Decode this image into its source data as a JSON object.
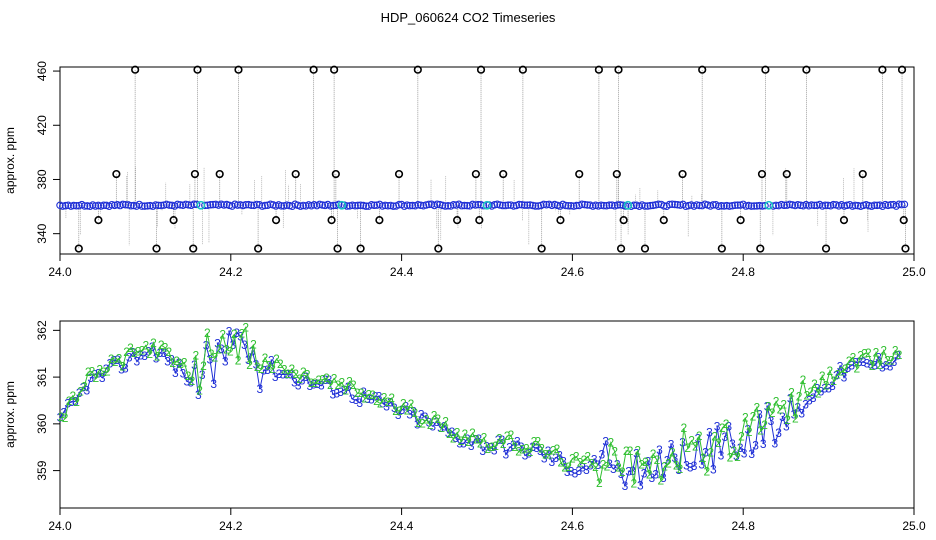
{
  "title": "HDP_060624  CO2 Timeseries",
  "colors": {
    "frame": "#000000",
    "spike_line": "#8c8c8c",
    "outlier": "#000000",
    "main_series": "#1f2fd6",
    "marker_cyan": "#19c3c3",
    "green": "#2fbf2f",
    "blue": "#1f2fd6"
  },
  "chart_data": [
    {
      "type": "scatter",
      "ylabel": "approx. ppm",
      "xlim": [
        24.0,
        25.0
      ],
      "ylim": [
        325,
        463
      ],
      "x_ticks": [
        24.0,
        24.2,
        24.4,
        24.6,
        24.8,
        25.0
      ],
      "x_tick_labels": [
        "24.0",
        "24.2",
        "24.4",
        "24.6",
        "24.8",
        "25.0"
      ],
      "y_ticks": [
        340,
        380,
        420,
        460
      ],
      "y_tick_labels": [
        "340",
        "380",
        "420",
        "460"
      ],
      "baseline_series": {
        "name": "",
        "x_start": 24.0,
        "x_end": 24.99,
        "value": 361,
        "gaps": [
          24.165,
          24.33,
          24.5,
          24.665,
          24.83
        ]
      },
      "cyan_markers": [
        {
          "x": 24.165,
          "y": 361
        },
        {
          "x": 24.33,
          "y": 361
        },
        {
          "x": 24.5,
          "y": 361
        },
        {
          "x": 24.665,
          "y": 361
        },
        {
          "x": 24.83,
          "y": 361
        }
      ],
      "outliers": [
        {
          "x": 24.022,
          "y": 329
        },
        {
          "x": 24.045,
          "y": 350
        },
        {
          "x": 24.066,
          "y": 384
        },
        {
          "x": 24.088,
          "y": 461
        },
        {
          "x": 24.113,
          "y": 329
        },
        {
          "x": 24.133,
          "y": 350
        },
        {
          "x": 24.156,
          "y": 329
        },
        {
          "x": 24.158,
          "y": 384
        },
        {
          "x": 24.161,
          "y": 461
        },
        {
          "x": 24.187,
          "y": 384
        },
        {
          "x": 24.209,
          "y": 461
        },
        {
          "x": 24.232,
          "y": 329
        },
        {
          "x": 24.253,
          "y": 350
        },
        {
          "x": 24.276,
          "y": 384
        },
        {
          "x": 24.297,
          "y": 461
        },
        {
          "x": 24.318,
          "y": 350
        },
        {
          "x": 24.321,
          "y": 461
        },
        {
          "x": 24.323,
          "y": 384
        },
        {
          "x": 24.325,
          "y": 329
        },
        {
          "x": 24.352,
          "y": 329
        },
        {
          "x": 24.374,
          "y": 350
        },
        {
          "x": 24.397,
          "y": 384
        },
        {
          "x": 24.419,
          "y": 461
        },
        {
          "x": 24.443,
          "y": 329
        },
        {
          "x": 24.465,
          "y": 350
        },
        {
          "x": 24.487,
          "y": 384
        },
        {
          "x": 24.491,
          "y": 350
        },
        {
          "x": 24.493,
          "y": 461
        },
        {
          "x": 24.519,
          "y": 384
        },
        {
          "x": 24.542,
          "y": 461
        },
        {
          "x": 24.564,
          "y": 329
        },
        {
          "x": 24.586,
          "y": 350
        },
        {
          "x": 24.608,
          "y": 384
        },
        {
          "x": 24.631,
          "y": 461
        },
        {
          "x": 24.652,
          "y": 384
        },
        {
          "x": 24.654,
          "y": 461
        },
        {
          "x": 24.657,
          "y": 329
        },
        {
          "x": 24.66,
          "y": 350
        },
        {
          "x": 24.685,
          "y": 329
        },
        {
          "x": 24.707,
          "y": 350
        },
        {
          "x": 24.729,
          "y": 384
        },
        {
          "x": 24.752,
          "y": 461
        },
        {
          "x": 24.775,
          "y": 329
        },
        {
          "x": 24.797,
          "y": 350
        },
        {
          "x": 24.82,
          "y": 329
        },
        {
          "x": 24.822,
          "y": 384
        },
        {
          "x": 24.826,
          "y": 461
        },
        {
          "x": 24.851,
          "y": 384
        },
        {
          "x": 24.874,
          "y": 461
        },
        {
          "x": 24.897,
          "y": 329
        },
        {
          "x": 24.918,
          "y": 350
        },
        {
          "x": 24.94,
          "y": 384
        },
        {
          "x": 24.963,
          "y": 461
        },
        {
          "x": 24.986,
          "y": 461
        },
        {
          "x": 24.988,
          "y": 350
        },
        {
          "x": 24.99,
          "y": 329
        }
      ]
    },
    {
      "type": "line",
      "ylabel": "approx. ppm",
      "xlim": [
        24.0,
        25.0
      ],
      "ylim": [
        358.2,
        362.2
      ],
      "x_ticks": [
        24.0,
        24.2,
        24.4,
        24.6,
        24.8,
        25.0
      ],
      "x_tick_labels": [
        "24.0",
        "24.2",
        "24.4",
        "24.6",
        "24.8",
        "25.0"
      ],
      "y_ticks": [
        359,
        360,
        361,
        362
      ],
      "y_tick_labels": [
        "359",
        "360",
        "361",
        "362"
      ],
      "point_symbols": [
        "2",
        "3"
      ],
      "trend": [
        [
          24.0,
          360.0
        ],
        [
          24.01,
          360.3
        ],
        [
          24.02,
          360.5
        ],
        [
          24.03,
          360.85
        ],
        [
          24.05,
          361.05
        ],
        [
          24.07,
          361.25
        ],
        [
          24.09,
          361.45
        ],
        [
          24.11,
          361.6
        ],
        [
          24.13,
          361.3
        ],
        [
          24.15,
          361.0
        ],
        [
          24.17,
          361.2
        ],
        [
          24.19,
          361.6
        ],
        [
          24.2,
          361.75
        ],
        [
          24.22,
          361.5
        ],
        [
          24.24,
          361.25
        ],
        [
          24.26,
          361.1
        ],
        [
          24.28,
          360.95
        ],
        [
          24.3,
          360.85
        ],
        [
          24.33,
          360.75
        ],
        [
          24.35,
          360.6
        ],
        [
          24.38,
          360.4
        ],
        [
          24.4,
          360.25
        ],
        [
          24.43,
          360.05
        ],
        [
          24.45,
          359.85
        ],
        [
          24.47,
          359.7
        ],
        [
          24.5,
          359.55
        ],
        [
          24.53,
          359.5
        ],
        [
          24.56,
          359.4
        ],
        [
          24.58,
          359.25
        ],
        [
          24.6,
          359.05
        ],
        [
          24.62,
          359.1
        ],
        [
          24.64,
          359.2
        ],
        [
          24.66,
          359.15
        ],
        [
          24.68,
          359.0
        ],
        [
          24.7,
          359.1
        ],
        [
          24.72,
          359.2
        ],
        [
          24.74,
          359.3
        ],
        [
          24.76,
          359.45
        ],
        [
          24.78,
          359.55
        ],
        [
          24.8,
          359.7
        ],
        [
          24.82,
          359.95
        ],
        [
          24.84,
          360.05
        ],
        [
          24.86,
          360.3
        ],
        [
          24.88,
          360.6
        ],
        [
          24.9,
          360.9
        ],
        [
          24.92,
          361.15
        ],
        [
          24.94,
          361.25
        ],
        [
          24.96,
          361.3
        ],
        [
          24.98,
          361.45
        ],
        [
          24.99,
          361.5
        ]
      ]
    }
  ]
}
